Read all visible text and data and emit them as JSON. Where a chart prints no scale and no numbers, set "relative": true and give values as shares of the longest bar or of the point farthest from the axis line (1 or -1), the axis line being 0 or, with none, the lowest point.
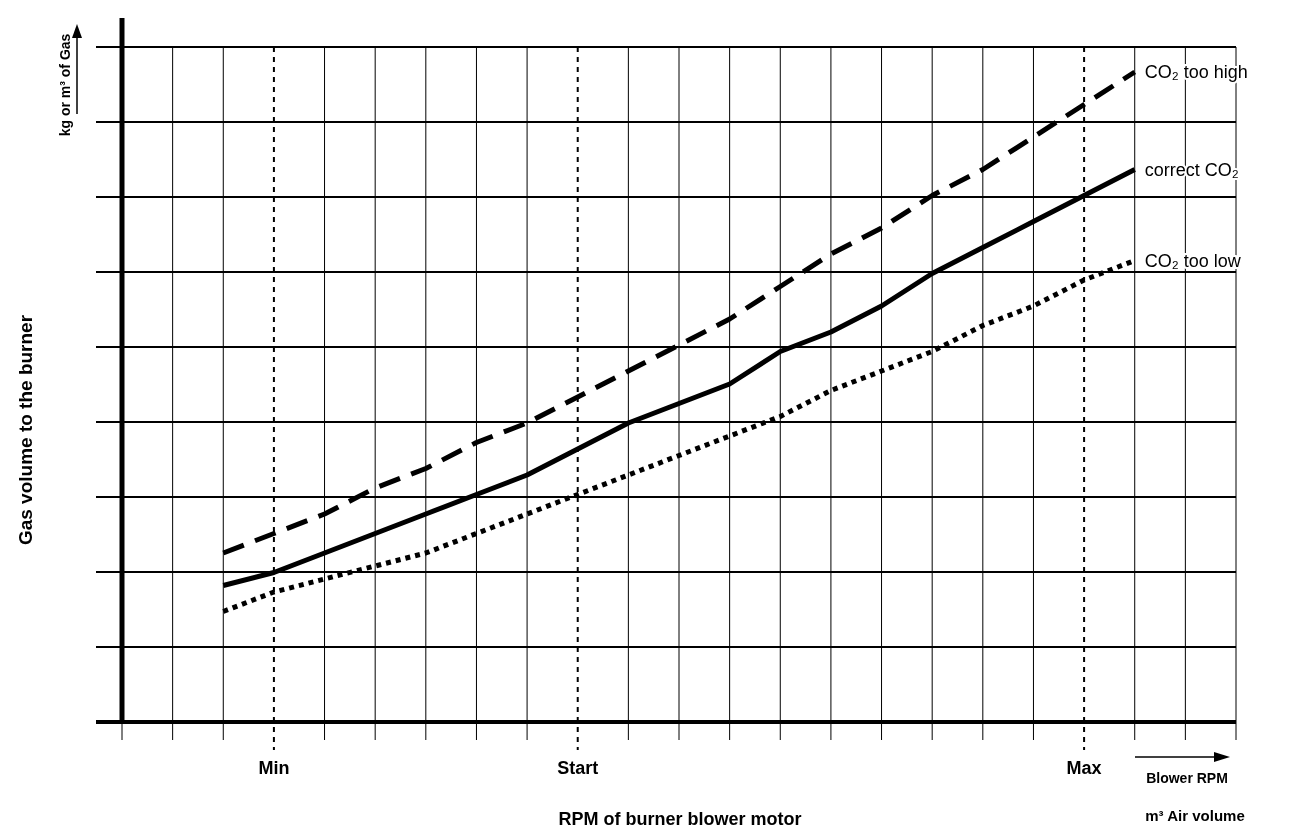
{
  "chart_data": {
    "type": "line",
    "relative": true,
    "xlabel": "RPM of burner blower motor",
    "ylabel": "Gas volume to the burner",
    "annotations": [
      "kg or m³ of Gas",
      "Blower RPM",
      "m³ Air volume"
    ],
    "categories": [
      null,
      null,
      null,
      "Min",
      null,
      null,
      null,
      null,
      null,
      "Start",
      null,
      null,
      null,
      null,
      null,
      null,
      null,
      null,
      null,
      "Max",
      null,
      null,
      null
    ],
    "series": [
      {
        "name": "CO₂ too high",
        "color": "#000000",
        "line_style": "dashed",
        "values": [
          null,
          null,
          0.26,
          0.29,
          0.32,
          0.36,
          0.39,
          0.43,
          0.46,
          0.5,
          0.54,
          0.58,
          0.62,
          0.67,
          0.72,
          0.76,
          0.81,
          0.85,
          0.9,
          0.95,
          1.0,
          null,
          null
        ]
      },
      {
        "name": "correct CO₂",
        "color": "#000000",
        "line_style": "solid",
        "values": [
          null,
          null,
          0.21,
          0.23,
          0.26,
          0.29,
          0.32,
          0.35,
          0.38,
          0.42,
          0.46,
          0.49,
          0.52,
          0.57,
          0.6,
          0.64,
          0.69,
          0.73,
          0.77,
          0.81,
          0.85,
          null,
          null
        ]
      },
      {
        "name": "CO₂ too low",
        "color": "#000000",
        "line_style": "dotted",
        "values": [
          null,
          null,
          0.17,
          0.2,
          0.22,
          0.24,
          0.26,
          0.29,
          0.32,
          0.35,
          0.38,
          0.41,
          0.44,
          0.47,
          0.51,
          0.54,
          0.57,
          0.61,
          0.64,
          0.68,
          0.71,
          null,
          null
        ]
      }
    ],
    "grid": true,
    "legend": false,
    "marker": "none"
  }
}
